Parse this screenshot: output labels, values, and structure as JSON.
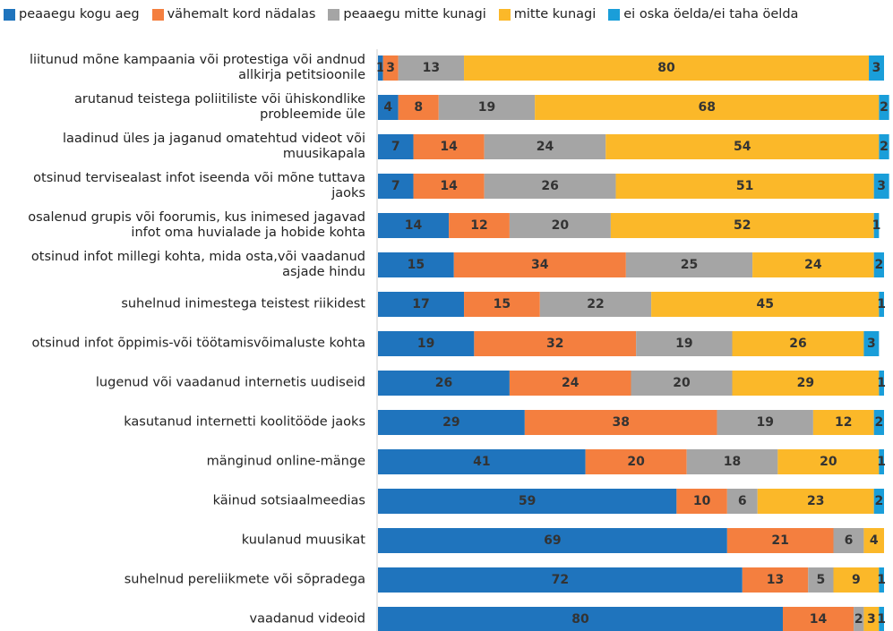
{
  "chart_data": {
    "type": "stacked_bar_horizontal",
    "categories": [
      "liitunud mõne kampaania või protestiga või andnud allkirja petitsioonile",
      "arutanud teistega poliitiliste või ühiskondlike probleemide üle",
      "laadinud üles ja jaganud omatehtud videot või muusikapala",
      "otsinud tervisealast infot iseenda või mõne tuttava jaoks",
      "osalenud grupis või foorumis, kus inimesed jagavad infot oma huvialade ja hobide kohta",
      "otsinud infot millegi kohta, mida osta,või vaadanud asjade hindu",
      "suhelnud inimestega teistest riikidest",
      "otsinud infot õppimis-või töötamisvõimaluste kohta",
      "lugenud või vaadanud internetis uudiseid",
      "kasutanud internetti koolitööde jaoks",
      "mänginud online-mänge",
      "käinud sotsiaalmeedias",
      "kuulanud muusikat",
      "suhelnud pereliikmete või sõpradega",
      "vaadanud videoid"
    ],
    "series": [
      {
        "name": "peaaegu kogu aeg",
        "color": "#1f74bd",
        "values": [
          1,
          4,
          7,
          7,
          14,
          15,
          17,
          19,
          26,
          29,
          41,
          59,
          69,
          72,
          80
        ]
      },
      {
        "name": "vähemalt kord nädalas",
        "color": "#f47f3f",
        "values": [
          3,
          8,
          14,
          14,
          12,
          34,
          15,
          32,
          24,
          38,
          20,
          10,
          21,
          13,
          14
        ]
      },
      {
        "name": "peaaegu mitte kunagi",
        "color": "#a5a5a5",
        "values": [
          13,
          19,
          24,
          26,
          20,
          25,
          22,
          19,
          20,
          19,
          18,
          6,
          6,
          5,
          2
        ]
      },
      {
        "name": "mitte kunagi",
        "color": "#fbb829",
        "values": [
          80,
          68,
          54,
          51,
          52,
          24,
          45,
          26,
          29,
          12,
          20,
          23,
          4,
          9,
          3
        ]
      },
      {
        "name": "ei oska öelda/ei taha öelda",
        "color": "#1a9ed9",
        "values": [
          3,
          2,
          2,
          3,
          1,
          2,
          1,
          3,
          1,
          2,
          1,
          2,
          null,
          1,
          1
        ]
      }
    ]
  }
}
